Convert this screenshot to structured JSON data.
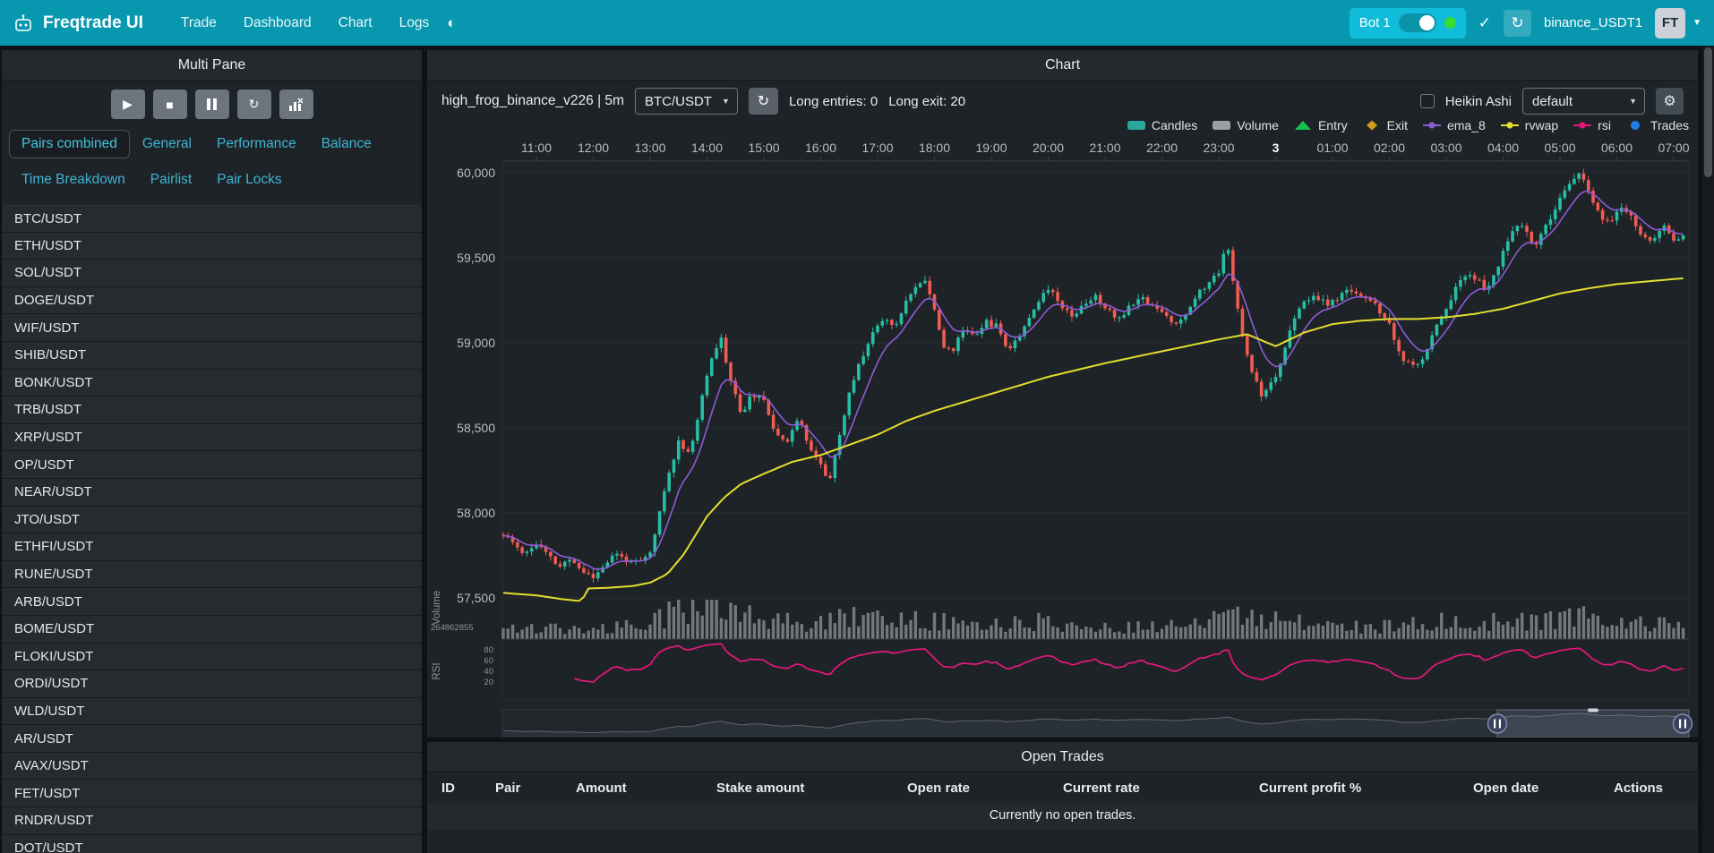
{
  "icons": {
    "caret_down": "▼",
    "check": "✓",
    "refresh": "↻",
    "play": "▶",
    "stop": "■",
    "gear": "⚙",
    "theme": "◐"
  },
  "navbar": {
    "brand": "Freqtrade UI",
    "links": [
      "Trade",
      "Dashboard",
      "Chart",
      "Logs"
    ],
    "bot": {
      "name": "Bot 1",
      "online": true
    },
    "exchange_label": "binance_USDT1",
    "avatar_label": "FT"
  },
  "sidebar": {
    "title": "Multi Pane",
    "tabs_rows": [
      [
        "Pairs combined",
        "General",
        "Performance",
        "Balance"
      ],
      [
        "Time Breakdown",
        "Pairlist",
        "Pair Locks"
      ]
    ],
    "active_tab": "Pairs combined",
    "pairs": [
      "BTC/USDT",
      "ETH/USDT",
      "SOL/USDT",
      "DOGE/USDT",
      "WIF/USDT",
      "SHIB/USDT",
      "BONK/USDT",
      "TRB/USDT",
      "XRP/USDT",
      "OP/USDT",
      "NEAR/USDT",
      "JTO/USDT",
      "ETHFI/USDT",
      "RUNE/USDT",
      "ARB/USDT",
      "BOME/USDT",
      "FLOKI/USDT",
      "ORDI/USDT",
      "WLD/USDT",
      "AR/USDT",
      "AVAX/USDT",
      "FET/USDT",
      "RNDR/USDT",
      "DOT/USDT"
    ]
  },
  "chart": {
    "title": "Chart",
    "toolbar": {
      "strategy_label": "high_frog_binance_v226 | 5m",
      "pair_selected": "BTC/USDT",
      "long_entries_label": "Long entries: 0",
      "long_exit_label": "Long exit: 20",
      "heikin_ashi_label": "Heikin Ashi",
      "heikin_ashi_checked": false,
      "plot_config_selected": "default"
    },
    "legend": [
      {
        "label": "Candles",
        "marker": "rect",
        "color": "#2aa79b"
      },
      {
        "label": "Volume",
        "marker": "rect",
        "color": "#9aa0a6"
      },
      {
        "label": "Entry",
        "marker": "triangle",
        "color": "#17c24c"
      },
      {
        "label": "Exit",
        "marker": "diamond",
        "color": "#d2a018"
      },
      {
        "label": "ema_8",
        "marker": "line-dot",
        "color": "#8d5bd8"
      },
      {
        "label": "rvwap",
        "marker": "line-dot",
        "color": "#e3df2e"
      },
      {
        "label": "rsi",
        "marker": "line-dot",
        "color": "#e6187e"
      },
      {
        "label": "Trades",
        "marker": "dot",
        "color": "#1f7fe8"
      }
    ]
  },
  "chart_data": {
    "type": "candlestick",
    "pair": "BTC/USDT",
    "timeframe": "5m",
    "x_labels": [
      "11:00",
      "12:00",
      "13:00",
      "14:00",
      "15:00",
      "16:00",
      "17:00",
      "18:00",
      "19:00",
      "20:00",
      "21:00",
      "22:00",
      "23:00",
      "3",
      "01:00",
      "02:00",
      "03:00",
      "04:00",
      "05:00",
      "06:00",
      "07:00"
    ],
    "x_bold_index": 13,
    "y_ticks": [
      60000,
      59500,
      59000,
      58500,
      58000,
      57500
    ],
    "y_tick_labels": [
      "60,000",
      "59,500",
      "59,000",
      "58,500",
      "58,000",
      "57,500"
    ],
    "volume_pane_label": "Volume",
    "volume_axis_label": "264862855",
    "rsi_pane_label": "RSI",
    "rsi_ticks": [
      80,
      60,
      40,
      20
    ],
    "t_start": -0.5833,
    "t_end": 20.1667,
    "candles_per_hour": 12,
    "seed": 11,
    "colors": {
      "up": "#26bfa5",
      "down": "#f05b52",
      "ema": "#8d5bd8",
      "rvwap": "#e3df2e",
      "rsi": "#e6187e",
      "volume": "#878d93"
    },
    "price_anchors": [
      [
        -0.6,
        57870
      ],
      [
        -0.4,
        57820
      ],
      [
        -0.2,
        57760
      ],
      [
        0,
        57820
      ],
      [
        0.2,
        57750
      ],
      [
        0.4,
        57680
      ],
      [
        0.6,
        57730
      ],
      [
        0.8,
        57660
      ],
      [
        1,
        57620
      ],
      [
        1.2,
        57700
      ],
      [
        1.4,
        57760
      ],
      [
        1.6,
        57720
      ],
      [
        1.8,
        57700
      ],
      [
        2,
        57760
      ],
      [
        2.1,
        57900
      ],
      [
        2.3,
        58200
      ],
      [
        2.5,
        58420
      ],
      [
        2.7,
        58350
      ],
      [
        2.9,
        58650
      ],
      [
        3.1,
        58950
      ],
      [
        3.25,
        59020
      ],
      [
        3.4,
        58800
      ],
      [
        3.6,
        58580
      ],
      [
        3.8,
        58700
      ],
      [
        4,
        58650
      ],
      [
        4.2,
        58480
      ],
      [
        4.4,
        58420
      ],
      [
        4.6,
        58550
      ],
      [
        4.8,
        58400
      ],
      [
        5,
        58280
      ],
      [
        5.15,
        58180
      ],
      [
        5.3,
        58400
      ],
      [
        5.5,
        58700
      ],
      [
        5.7,
        58900
      ],
      [
        5.9,
        59050
      ],
      [
        6.1,
        59150
      ],
      [
        6.3,
        59100
      ],
      [
        6.5,
        59250
      ],
      [
        6.7,
        59330
      ],
      [
        6.85,
        59380
      ],
      [
        7,
        59200
      ],
      [
        7.15,
        58980
      ],
      [
        7.3,
        58940
      ],
      [
        7.5,
        59080
      ],
      [
        7.7,
        59050
      ],
      [
        7.9,
        59120
      ],
      [
        8.1,
        59100
      ],
      [
        8.3,
        58960
      ],
      [
        8.5,
        59050
      ],
      [
        8.7,
        59180
      ],
      [
        8.9,
        59280
      ],
      [
        9.05,
        59330
      ],
      [
        9.2,
        59240
      ],
      [
        9.4,
        59160
      ],
      [
        9.6,
        59210
      ],
      [
        9.8,
        59280
      ],
      [
        10,
        59210
      ],
      [
        10.2,
        59140
      ],
      [
        10.4,
        59200
      ],
      [
        10.6,
        59280
      ],
      [
        10.8,
        59230
      ],
      [
        11,
        59180
      ],
      [
        11.2,
        59110
      ],
      [
        11.4,
        59160
      ],
      [
        11.6,
        59280
      ],
      [
        11.8,
        59340
      ],
      [
        12,
        59420
      ],
      [
        12.15,
        59600
      ],
      [
        12.3,
        59250
      ],
      [
        12.45,
        58980
      ],
      [
        12.6,
        58820
      ],
      [
        12.75,
        58700
      ],
      [
        12.9,
        58760
      ],
      [
        13.05,
        58840
      ],
      [
        13.2,
        59020
      ],
      [
        13.35,
        59150
      ],
      [
        13.5,
        59240
      ],
      [
        13.7,
        59280
      ],
      [
        13.9,
        59220
      ],
      [
        14.1,
        59260
      ],
      [
        14.3,
        59320
      ],
      [
        14.5,
        59280
      ],
      [
        14.7,
        59230
      ],
      [
        14.85,
        59180
      ],
      [
        15,
        59100
      ],
      [
        15.15,
        58950
      ],
      [
        15.3,
        58880
      ],
      [
        15.45,
        58850
      ],
      [
        15.6,
        58920
      ],
      [
        15.8,
        59080
      ],
      [
        16,
        59210
      ],
      [
        16.2,
        59340
      ],
      [
        16.4,
        59420
      ],
      [
        16.55,
        59370
      ],
      [
        16.7,
        59310
      ],
      [
        16.85,
        59390
      ],
      [
        17,
        59540
      ],
      [
        17.15,
        59640
      ],
      [
        17.3,
        59700
      ],
      [
        17.45,
        59620
      ],
      [
        17.6,
        59580
      ],
      [
        17.75,
        59680
      ],
      [
        17.9,
        59770
      ],
      [
        18.05,
        59870
      ],
      [
        18.2,
        59960
      ],
      [
        18.35,
        60000
      ],
      [
        18.5,
        59880
      ],
      [
        18.65,
        59780
      ],
      [
        18.8,
        59700
      ],
      [
        18.95,
        59740
      ],
      [
        19.1,
        59800
      ],
      [
        19.25,
        59750
      ],
      [
        19.4,
        59650
      ],
      [
        19.55,
        59590
      ],
      [
        19.7,
        59640
      ],
      [
        19.85,
        59680
      ],
      [
        20,
        59600
      ],
      [
        20.2,
        59620
      ]
    ],
    "rvwap_anchors": [
      [
        -0.6,
        57530
      ],
      [
        0,
        57515
      ],
      [
        0.4,
        57495
      ],
      [
        0.8,
        57480
      ],
      [
        0.9,
        57555
      ],
      [
        1.3,
        57560
      ],
      [
        1.7,
        57570
      ],
      [
        2,
        57590
      ],
      [
        2.3,
        57640
      ],
      [
        2.6,
        57760
      ],
      [
        3,
        57980
      ],
      [
        3.3,
        58090
      ],
      [
        3.6,
        58170
      ],
      [
        4,
        58230
      ],
      [
        4.5,
        58300
      ],
      [
        5,
        58340
      ],
      [
        5.5,
        58400
      ],
      [
        6,
        58460
      ],
      [
        6.5,
        58540
      ],
      [
        7,
        58600
      ],
      [
        7.5,
        58650
      ],
      [
        8,
        58700
      ],
      [
        8.5,
        58750
      ],
      [
        9,
        58800
      ],
      [
        9.5,
        58840
      ],
      [
        10,
        58880
      ],
      [
        10.5,
        58915
      ],
      [
        11,
        58950
      ],
      [
        11.5,
        58985
      ],
      [
        12,
        59020
      ],
      [
        12.5,
        59050
      ],
      [
        13,
        58980
      ],
      [
        13.5,
        59060
      ],
      [
        14,
        59110
      ],
      [
        14.5,
        59130
      ],
      [
        15,
        59140
      ],
      [
        15.5,
        59140
      ],
      [
        16,
        59150
      ],
      [
        16.5,
        59170
      ],
      [
        17,
        59200
      ],
      [
        17.5,
        59245
      ],
      [
        18,
        59290
      ],
      [
        18.5,
        59320
      ],
      [
        19,
        59345
      ],
      [
        19.5,
        59360
      ],
      [
        20,
        59375
      ],
      [
        20.2,
        59380
      ]
    ],
    "volume_anchors": [
      [
        -0.6,
        0.25
      ],
      [
        0,
        0.3
      ],
      [
        1,
        0.25
      ],
      [
        2,
        0.35
      ],
      [
        2.3,
        0.7
      ],
      [
        2.7,
        0.8
      ],
      [
        3.1,
        0.9
      ],
      [
        3.25,
        1.0
      ],
      [
        3.5,
        0.7
      ],
      [
        4,
        0.5
      ],
      [
        4.5,
        0.45
      ],
      [
        5,
        0.4
      ],
      [
        5.5,
        0.55
      ],
      [
        6,
        0.5
      ],
      [
        6.5,
        0.45
      ],
      [
        7,
        0.5
      ],
      [
        7.5,
        0.4
      ],
      [
        8,
        0.35
      ],
      [
        8.5,
        0.4
      ],
      [
        9,
        0.45
      ],
      [
        9.5,
        0.35
      ],
      [
        10,
        0.3
      ],
      [
        10.5,
        0.35
      ],
      [
        11,
        0.3
      ],
      [
        11.5,
        0.35
      ],
      [
        12,
        0.5
      ],
      [
        12.2,
        0.65
      ],
      [
        12.5,
        0.6
      ],
      [
        12.8,
        0.5
      ],
      [
        13,
        0.45
      ],
      [
        13.5,
        0.4
      ],
      [
        14,
        0.35
      ],
      [
        14.5,
        0.3
      ],
      [
        15,
        0.35
      ],
      [
        15.5,
        0.4
      ],
      [
        16,
        0.45
      ],
      [
        16.5,
        0.4
      ],
      [
        17,
        0.45
      ],
      [
        17.5,
        0.5
      ],
      [
        18,
        0.55
      ],
      [
        18.4,
        0.6
      ],
      [
        18.7,
        0.5
      ],
      [
        19,
        0.45
      ],
      [
        19.5,
        0.4
      ],
      [
        20,
        0.35
      ],
      [
        20.2,
        0.3
      ]
    ]
  },
  "open_trades": {
    "title": "Open Trades",
    "columns": [
      "ID",
      "Pair",
      "Amount",
      "Stake amount",
      "Open rate",
      "Current rate",
      "Current profit %",
      "Open date",
      "Actions"
    ],
    "empty_message": "Currently no open trades."
  }
}
